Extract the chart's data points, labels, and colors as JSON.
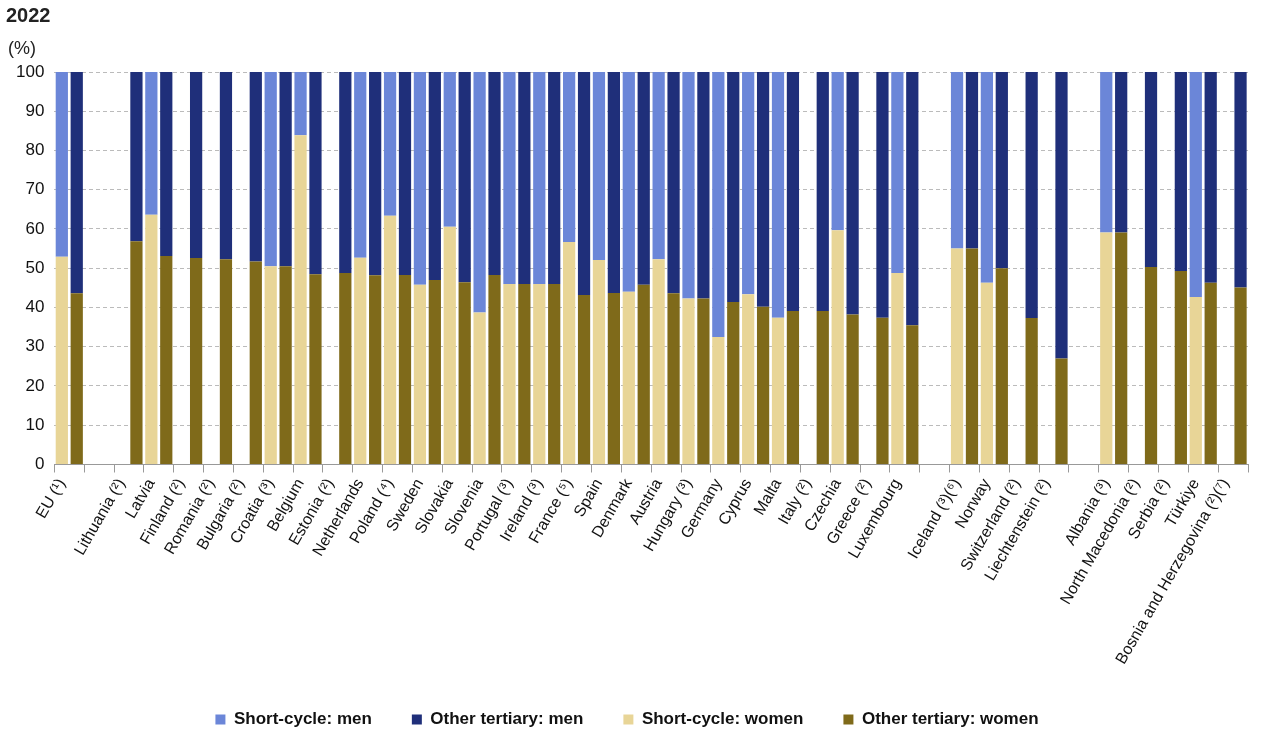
{
  "chart_data": {
    "type": "bar",
    "title": "2022",
    "ylabel": "(%)",
    "stacked": true,
    "categories": [
      "EU (¹)",
      null,
      null,
      null,
      "Lithuania (²)",
      null,
      "Latvia",
      null,
      "Finland (²)",
      null,
      "Romania (²)",
      null,
      "Bulgaria (²)",
      null,
      "Croatia (³)",
      null,
      "Belgium",
      null,
      "Estonia (²)",
      null,
      "Netherlands",
      null,
      "Poland (⁴)",
      null,
      "Sweden",
      null,
      "Slovakia",
      null,
      "Slovenia",
      null,
      "Portugal (³)",
      null,
      "Ireland (³)",
      null,
      "France (⁵)",
      null,
      "Spain",
      null,
      "Denmark",
      null,
      "Austria",
      null,
      "Hungary (³)",
      null,
      "Germany",
      null,
      "Cyprus",
      null,
      "Malta",
      null,
      "Italy (²)",
      null,
      "Czechia",
      null,
      "Greece (²)",
      null,
      "Luxembourg",
      null,
      null,
      null,
      "Iceland (³)(⁶)",
      null,
      "Norway",
      null,
      "Switzerland (²)",
      null,
      "Liechtenstein (²)",
      null,
      null,
      null,
      "Albania (³)",
      null,
      "North Macedonia (²)",
      null,
      "Serbia (²)",
      null,
      "Türkiye",
      null,
      "Bosnia and Herzegovina (²)(⁷)",
      null
    ],
    "series": [
      {
        "name": "Short-cycle: women",
        "color": "#e8d597",
        "values": [
          52.9,
          null,
          null,
          null,
          null,
          null,
          63.6,
          null,
          null,
          null,
          null,
          null,
          null,
          null,
          50.5,
          null,
          83.9,
          null,
          null,
          null,
          52.7,
          null,
          63.4,
          null,
          45.8,
          null,
          60.6,
          null,
          38.7,
          null,
          46.0,
          null,
          46.0,
          null,
          56.7,
          null,
          52.1,
          null,
          44.0,
          null,
          52.3,
          null,
          42.3,
          null,
          32.5,
          null,
          43.4,
          null,
          37.4,
          null,
          null,
          null,
          59.7,
          null,
          null,
          null,
          48.8,
          null,
          null,
          null,
          55.0,
          null,
          46.3,
          null,
          null,
          null,
          null,
          null,
          null,
          null,
          59.1,
          null,
          null,
          null,
          null,
          null,
          42.7,
          null,
          null,
          null
        ]
      },
      {
        "name": "Short-cycle: men",
        "color": "#6b86d8",
        "values": [
          47.1,
          null,
          null,
          null,
          null,
          null,
          36.4,
          null,
          null,
          null,
          null,
          null,
          null,
          null,
          49.5,
          null,
          16.1,
          null,
          null,
          null,
          47.3,
          null,
          36.6,
          null,
          54.2,
          null,
          39.4,
          null,
          61.3,
          null,
          54.0,
          null,
          54.0,
          null,
          43.3,
          null,
          47.9,
          null,
          56.0,
          null,
          47.7,
          null,
          57.7,
          null,
          67.5,
          null,
          56.6,
          null,
          62.6,
          null,
          null,
          null,
          40.3,
          null,
          null,
          null,
          51.2,
          null,
          null,
          null,
          45.0,
          null,
          53.7,
          null,
          null,
          null,
          null,
          null,
          null,
          null,
          40.9,
          null,
          null,
          null,
          null,
          null,
          57.3,
          null,
          null,
          null
        ]
      },
      {
        "name": "Other tertiary: women",
        "color": "#7f6a1a",
        "values": [
          null,
          43.6,
          null,
          null,
          null,
          56.9,
          null,
          53.1,
          null,
          52.6,
          null,
          52.3,
          null,
          51.7,
          null,
          50.5,
          null,
          48.5,
          null,
          48.8,
          null,
          48.2,
          null,
          48.3,
          null,
          47.0,
          null,
          46.4,
          null,
          48.3,
          null,
          46.0,
          null,
          46.0,
          null,
          43.2,
          null,
          43.7,
          null,
          45.8,
          null,
          43.6,
          null,
          42.3,
          null,
          41.4,
          null,
          40.2,
          null,
          39.1,
          null,
          39.1,
          null,
          38.2,
          null,
          37.4,
          null,
          35.5,
          null,
          null,
          null,
          55.0,
          null,
          50.0,
          null,
          37.3,
          null,
          27.0,
          null,
          null,
          null,
          59.1,
          null,
          50.3,
          null,
          49.3,
          null,
          46.3,
          null,
          45.1
        ]
      },
      {
        "name": "Other tertiary: men",
        "color": "#1f2f7a",
        "values": [
          null,
          56.4,
          null,
          null,
          null,
          43.1,
          null,
          46.9,
          null,
          47.4,
          null,
          47.7,
          null,
          48.3,
          null,
          49.5,
          null,
          51.5,
          null,
          51.2,
          null,
          51.8,
          null,
          51.7,
          null,
          53.0,
          null,
          53.6,
          null,
          51.7,
          null,
          54.0,
          null,
          54.0,
          null,
          56.8,
          null,
          56.3,
          null,
          54.2,
          null,
          56.4,
          null,
          57.7,
          null,
          58.6,
          null,
          59.8,
          null,
          60.9,
          null,
          60.9,
          null,
          61.8,
          null,
          62.6,
          null,
          64.5,
          null,
          null,
          null,
          45.0,
          null,
          50.0,
          null,
          62.7,
          null,
          73.0,
          null,
          null,
          null,
          40.9,
          null,
          49.7,
          null,
          50.7,
          null,
          53.7,
          null,
          54.9
        ]
      }
    ],
    "ylim": [
      0,
      100
    ],
    "yticks": [
      0,
      10,
      20,
      30,
      40,
      50,
      60,
      70,
      80,
      90,
      100
    ],
    "grid": "y",
    "legend": "bottom"
  }
}
